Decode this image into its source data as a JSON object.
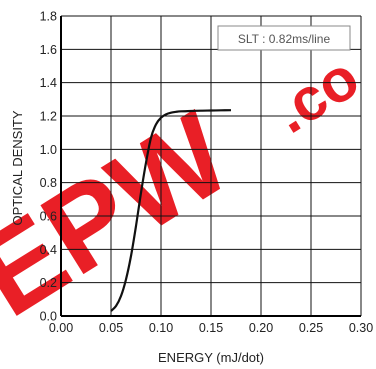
{
  "chart_data": {
    "type": "line",
    "xlabel": "ENERGY (mJ/dot)",
    "ylabel": "OPTICAL  DENSITY",
    "xlim": [
      0.0,
      0.3
    ],
    "ylim": [
      0.0,
      1.8
    ],
    "x_ticks": [
      "0.00",
      "0.05",
      "0.10",
      "0.15",
      "0.20",
      "0.25",
      "0.30"
    ],
    "y_ticks": [
      "0.0",
      "0.2",
      "0.4",
      "0.6",
      "0.8",
      "1.0",
      "1.2",
      "1.4",
      "1.6",
      "1.8"
    ],
    "grid": true,
    "legend_box": "SLT : 0.82ms/line",
    "legend_position": "top-right",
    "series": [
      {
        "x": [
          0.05,
          0.055,
          0.06,
          0.065,
          0.07,
          0.075,
          0.08,
          0.085,
          0.09,
          0.095,
          0.1,
          0.105,
          0.11,
          0.115,
          0.12,
          0.13,
          0.14,
          0.15,
          0.16,
          0.17
        ],
        "y": [
          0.03,
          0.06,
          0.12,
          0.22,
          0.36,
          0.54,
          0.74,
          0.92,
          1.07,
          1.15,
          1.19,
          1.21,
          1.22,
          1.225,
          1.228,
          1.23,
          1.232,
          1.233,
          1.234,
          1.235
        ]
      }
    ],
    "line_color": "#111111"
  },
  "watermark": {
    "text": "EPW.co",
    "color": "#e8141b"
  }
}
